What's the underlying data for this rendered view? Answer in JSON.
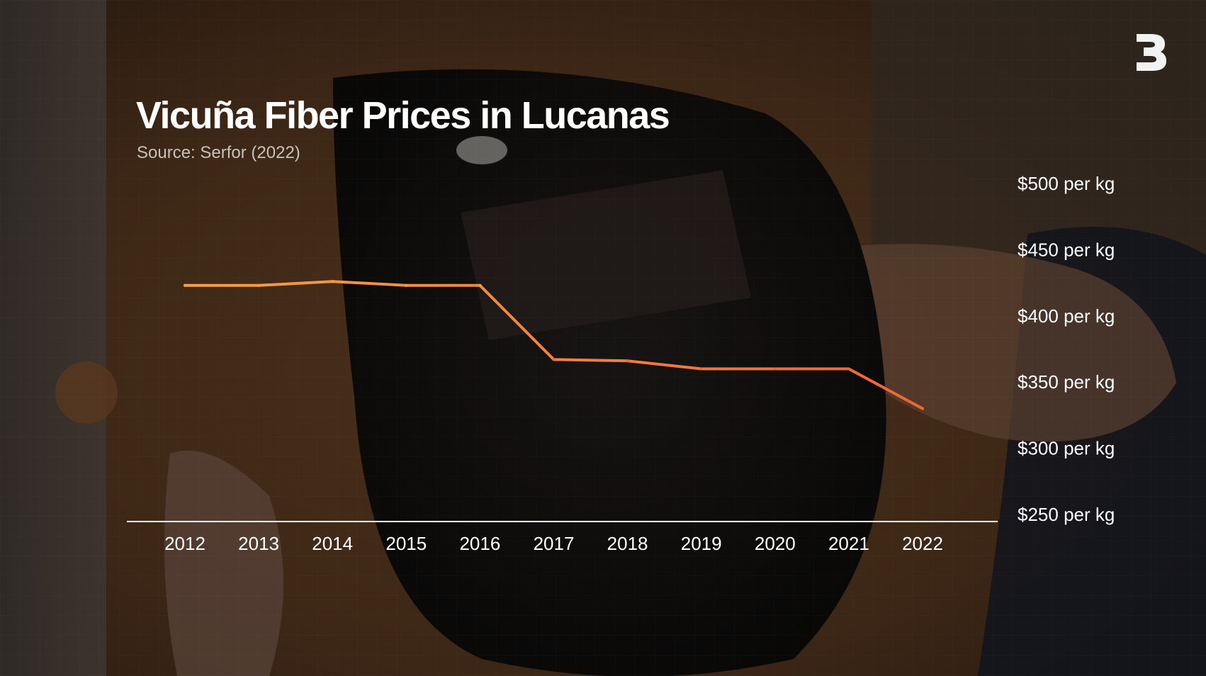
{
  "header": {
    "title": "Vicuña Fiber Prices in Lucanas",
    "subtitle": "Source: Serfor (2022)"
  },
  "brand": {
    "logo_icon": "b-logo-icon"
  },
  "colors": {
    "line_start": "#f5a046",
    "line_end": "#f2643a",
    "axis": "#ffffff",
    "text": "#ffffff"
  },
  "chart_data": {
    "type": "line",
    "title": "Vicuña Fiber Prices in Lucanas",
    "subtitle": "Source: Serfor (2022)",
    "x": [
      "2012",
      "2013",
      "2014",
      "2015",
      "2016",
      "2017",
      "2018",
      "2019",
      "2020",
      "2021",
      "2022"
    ],
    "y": [
      423,
      423,
      426,
      423,
      423,
      367,
      366,
      360,
      360,
      360,
      330
    ],
    "y_tick_values": [
      500,
      450,
      400,
      350,
      300,
      250
    ],
    "y_tick_labels": [
      "$500 per kg",
      "$450 per kg",
      "$400 per kg",
      "$350 per kg",
      "$300 per kg",
      "$250 per kg"
    ],
    "ylim": [
      250,
      500
    ],
    "y_axis_position": "right",
    "grid": false,
    "legend": "none"
  }
}
